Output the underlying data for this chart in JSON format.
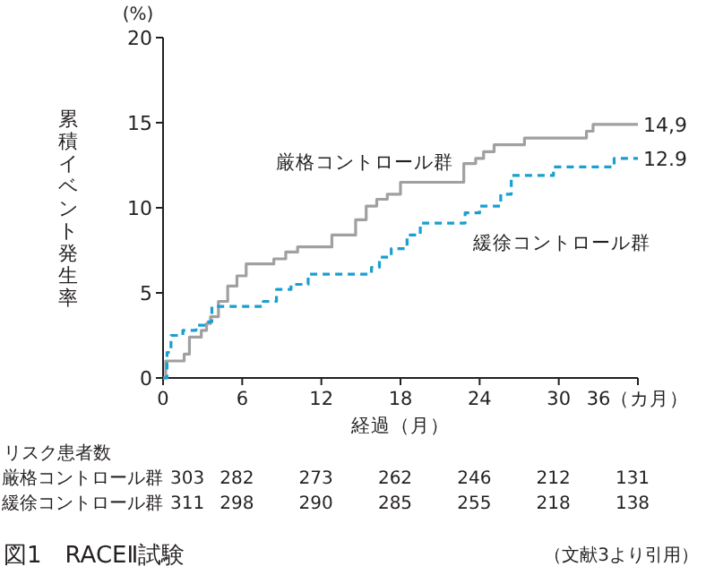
{
  "chart_data": {
    "type": "step",
    "title": "図1　RACEⅡ試験",
    "xlabel": "経過（月）",
    "ylabel": "累積イベント発生率",
    "xlim": [
      0,
      36
    ],
    "ylim": [
      0,
      20
    ],
    "xticks": [
      0,
      6,
      12,
      18,
      24,
      30,
      {
        "value": 36,
        "label": "36（カ月）"
      }
    ],
    "yticks": [
      0,
      5,
      10,
      15,
      20
    ],
    "series": [
      {
        "name": "厳格コントロール群",
        "color": "#a0a0a0",
        "line_style": "solid",
        "x": [
          0,
          0.2,
          1.4,
          1.6,
          2.0,
          2.9,
          3.3,
          3.6,
          4.2,
          4.9,
          5.6,
          6.3,
          8.4,
          9.3,
          10.2,
          12.8,
          14.6,
          15.4,
          16.2,
          17.0,
          18.0,
          22.8,
          23.7,
          24.3,
          25.1,
          27.4,
          32.1,
          32.6,
          36
        ],
        "values": [
          0,
          1.0,
          1.0,
          1.4,
          2.4,
          2.8,
          3.2,
          3.6,
          4.5,
          5.4,
          6.0,
          6.7,
          7.0,
          7.4,
          7.7,
          8.4,
          9.3,
          10.1,
          10.5,
          10.8,
          11.5,
          12.6,
          12.9,
          13.3,
          13.7,
          14.1,
          14.5,
          14.9,
          14.9
        ]
      },
      {
        "name": "緩徐コントロール群",
        "color": "#1a9fd0",
        "line_style": "dashed",
        "x": [
          0,
          0.3,
          0.6,
          1.5,
          2.5,
          3.2,
          3.7,
          7.6,
          8.6,
          9.7,
          11.0,
          15.8,
          16.4,
          17.3,
          18.5,
          19.5,
          22.9,
          24.0,
          25.6,
          26.4,
          29.6,
          34.2,
          36
        ],
        "values": [
          0,
          1.5,
          2.5,
          2.8,
          3.1,
          3.3,
          4.2,
          4.5,
          5.2,
          5.5,
          6.1,
          6.5,
          7.1,
          7.6,
          8.4,
          9.1,
          9.7,
          10.1,
          10.8,
          11.9,
          12.4,
          12.9,
          12.9
        ]
      }
    ],
    "annotations": [
      "(%)",
      {
        "text": "14,9",
        "x": 36,
        "y": 14.9
      },
      {
        "text": "12.9",
        "x": 36,
        "y": 12.9
      },
      "リスク患者数",
      "厳格コントロール群",
      "303",
      "282",
      "273",
      "262",
      "246",
      "212",
      "131",
      "緩徐コントロール群",
      "311",
      "298",
      "290",
      "285",
      "255",
      "218",
      "138",
      "（文献3より引用）"
    ]
  }
}
